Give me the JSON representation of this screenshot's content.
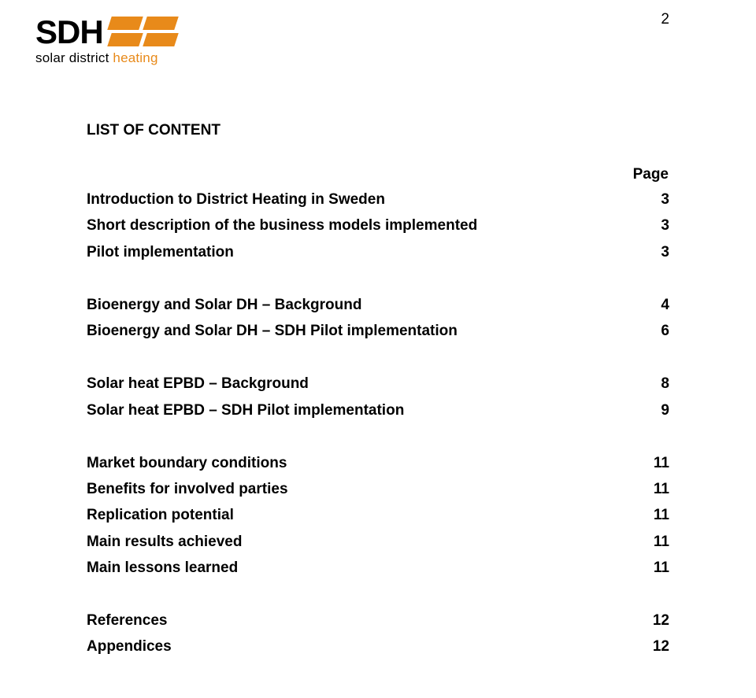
{
  "page_number": "2",
  "logo": {
    "main": "SDH",
    "sub_prefix": "solar district ",
    "sub_accent": "heating",
    "accent_color": "#e88a1a"
  },
  "heading": "LIST OF CONTENT",
  "page_label": "Page",
  "groups": [
    {
      "rows": [
        {
          "title": "Introduction to District Heating in Sweden",
          "page": "3"
        },
        {
          "title": "Short description of the business models implemented",
          "page": "3"
        },
        {
          "title": "Pilot implementation",
          "page": "3"
        }
      ]
    },
    {
      "rows": [
        {
          "title": "Bioenergy and Solar DH – Background",
          "page": "4"
        },
        {
          "title": "Bioenergy and Solar DH – SDH Pilot implementation",
          "page": "6"
        }
      ]
    },
    {
      "rows": [
        {
          "title": "Solar heat EPBD – Background",
          "page": "8"
        },
        {
          "title": "Solar heat EPBD – SDH Pilot implementation",
          "page": "9"
        }
      ]
    },
    {
      "rows": [
        {
          "title": "Market boundary conditions",
          "page": "11"
        },
        {
          "title": "Benefits for involved parties",
          "page": "11"
        },
        {
          "title": "Replication potential",
          "page": "11"
        },
        {
          "title": "Main results achieved",
          "page": "11"
        },
        {
          "title": "Main lessons learned",
          "page": "11"
        }
      ]
    },
    {
      "rows": [
        {
          "title": "References",
          "page": "12"
        },
        {
          "title": "Appendices",
          "page": "12"
        }
      ]
    }
  ]
}
